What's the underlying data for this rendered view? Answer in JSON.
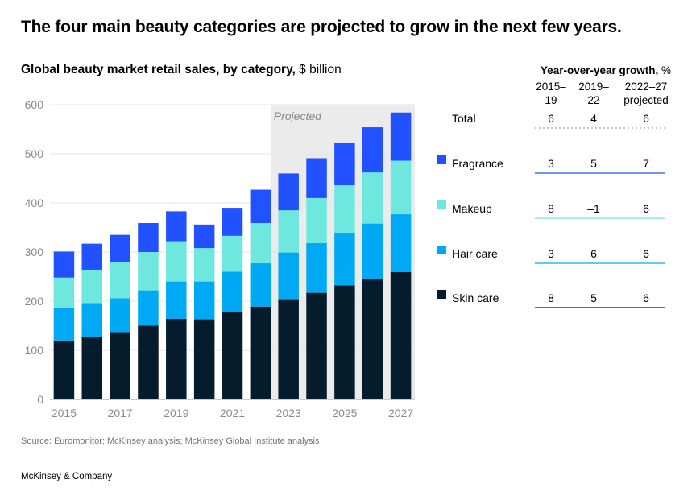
{
  "headline": "The four main beauty categories are projected to grow in the next few years.",
  "chart_title_bold": "Global beauty market retail sales, by category,",
  "chart_title_unit": "$ billion",
  "source": "Source: Euromonitor; McKinsey analysis; McKinsey Global Institute analysis",
  "brand": "McKinsey & Company",
  "colors": {
    "skin_care": "#051c2c",
    "hair_care": "#00a9f4",
    "makeup": "#6ee7de",
    "fragrance": "#2251ff",
    "projected_bg": "#ebebeb",
    "grid": "#e6e6e6",
    "axis_text": "#8a8a8a"
  },
  "chart_data": {
    "type": "bar",
    "stacked": true,
    "title": "Global beauty market retail sales, by category, $ billion",
    "x": [
      2015,
      2016,
      2017,
      2018,
      2019,
      2020,
      2021,
      2022,
      2023,
      2024,
      2025,
      2026,
      2027
    ],
    "x_tick_labels": [
      "2015",
      "2017",
      "2019",
      "2021",
      "2023",
      "2025",
      "2027"
    ],
    "ylim": [
      0,
      600
    ],
    "y_ticks": [
      0,
      100,
      200,
      300,
      400,
      500,
      600
    ],
    "grid": true,
    "projected_from": 2023,
    "projected_label": "Projected",
    "series": [
      {
        "name": "Skin care",
        "values": [
          120,
          127,
          137,
          150,
          164,
          163,
          178,
          189,
          204,
          217,
          232,
          245,
          259
        ]
      },
      {
        "name": "Hair care",
        "values": [
          66,
          69,
          69,
          72,
          76,
          77,
          82,
          88,
          95,
          101,
          107,
          113,
          118
        ]
      },
      {
        "name": "Makeup",
        "values": [
          62,
          68,
          73,
          78,
          82,
          68,
          73,
          82,
          86,
          92,
          97,
          104,
          109
        ]
      },
      {
        "name": "Fragrance",
        "values": [
          53,
          53,
          56,
          59,
          61,
          48,
          57,
          68,
          75,
          81,
          87,
          92,
          98
        ]
      }
    ]
  },
  "growth_table": {
    "title_bold": "Year-over-year growth,",
    "title_unit": "%",
    "columns": [
      {
        "line1": "2015–",
        "line2": "19"
      },
      {
        "line1": "2019–",
        "line2": "22"
      },
      {
        "line1": "2022–27",
        "line2": "projected"
      }
    ],
    "rows": [
      {
        "label": "Total",
        "values": [
          "6",
          "4",
          "6"
        ],
        "swatch": null
      },
      {
        "label": "Fragrance",
        "values": [
          "3",
          "5",
          "7"
        ],
        "swatch": "#2251ff"
      },
      {
        "label": "Makeup",
        "values": [
          "8",
          "–1",
          "6"
        ],
        "swatch": "#6ee7de"
      },
      {
        "label": "Hair care",
        "values": [
          "3",
          "6",
          "6"
        ],
        "swatch": "#00a9f4"
      },
      {
        "label": "Skin care",
        "values": [
          "8",
          "5",
          "6"
        ],
        "swatch": "#051c2c"
      }
    ]
  }
}
